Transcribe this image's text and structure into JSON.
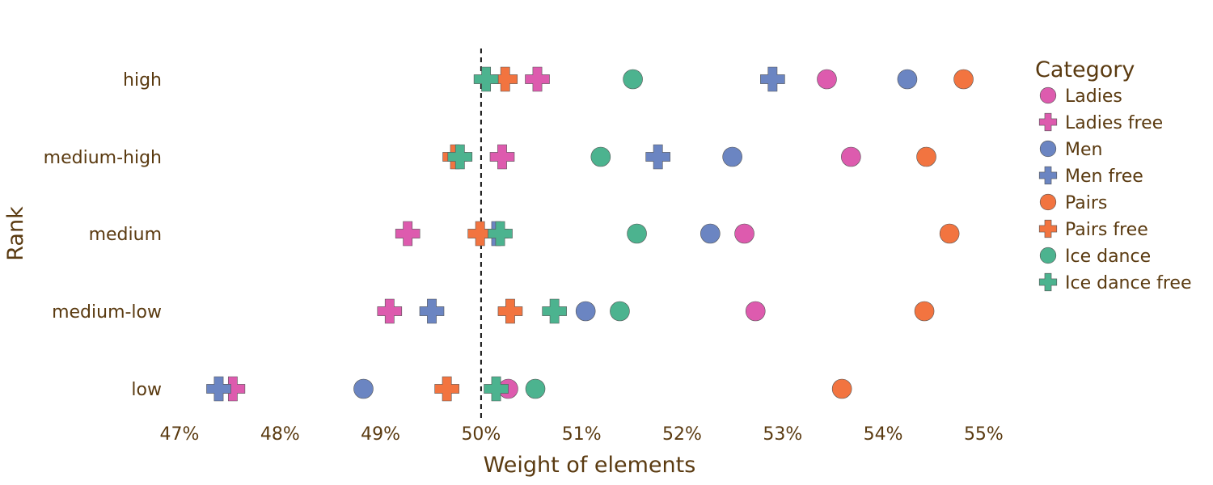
{
  "chart_data": {
    "type": "scatter",
    "xlabel": "Weight of elements",
    "ylabel": "Rank",
    "xlim": [
      46.8,
      55.4
    ],
    "x_ticks": [
      47,
      48,
      49,
      50,
      51,
      52,
      53,
      54,
      55
    ],
    "x_tick_labels": [
      "47%",
      "48%",
      "49%",
      "50%",
      "51%",
      "52%",
      "53%",
      "54%",
      "55%"
    ],
    "categories": [
      "low",
      "medium-low",
      "medium",
      "medium-high",
      "high"
    ],
    "reference_line": {
      "x": 50,
      "style": "dashed"
    },
    "legend": {
      "title": "Category",
      "placement": "right"
    },
    "series": [
      {
        "name": "Ladies",
        "marker": "circle",
        "color": "#dd5bae",
        "values": [
          50.27,
          52.73,
          52.62,
          53.68,
          53.44
        ]
      },
      {
        "name": "Ladies free",
        "marker": "cross",
        "color": "#dd5bae",
        "values": [
          47.53,
          49.09,
          49.27,
          50.21,
          50.56
        ]
      },
      {
        "name": "Men",
        "marker": "circle",
        "color": "#6b85c2",
        "values": [
          48.83,
          51.04,
          52.28,
          52.5,
          54.24
        ]
      },
      {
        "name": "Men free",
        "marker": "cross",
        "color": "#6b85c2",
        "values": [
          47.39,
          49.51,
          50.15,
          51.76,
          52.9
        ]
      },
      {
        "name": "Pairs",
        "marker": "circle",
        "color": "#f27440",
        "values": [
          53.59,
          54.41,
          54.66,
          54.43,
          54.8
        ]
      },
      {
        "name": "Pairs free",
        "marker": "cross",
        "color": "#f27440",
        "values": [
          49.66,
          50.29,
          49.99,
          49.74,
          50.24
        ]
      },
      {
        "name": "Ice dance",
        "marker": "circle",
        "color": "#4cb38f",
        "values": [
          50.54,
          51.38,
          51.55,
          51.19,
          51.51
        ]
      },
      {
        "name": "Ice dance free",
        "marker": "cross",
        "color": "#4cb38f",
        "values": [
          50.15,
          50.73,
          50.19,
          49.79,
          50.05
        ]
      }
    ]
  }
}
